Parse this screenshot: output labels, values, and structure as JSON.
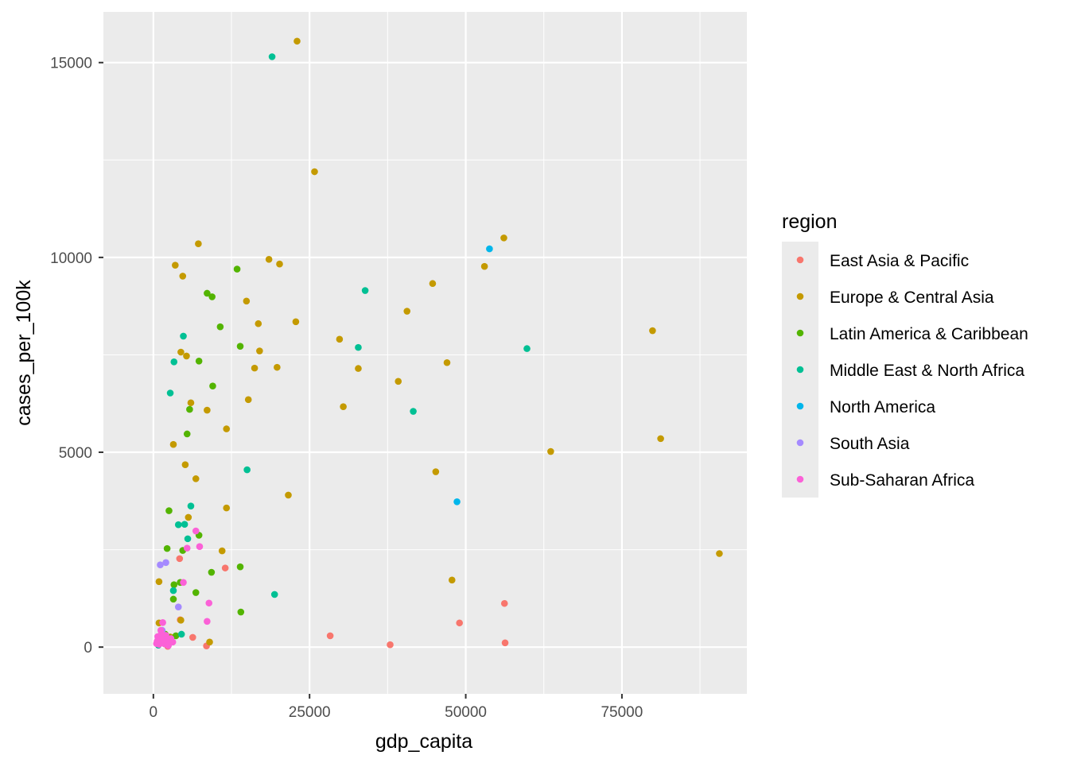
{
  "chart_data": {
    "type": "scatter",
    "title": "",
    "xlabel": "gdp_capita",
    "ylabel": "cases_per_100k",
    "xlim": [
      -8000,
      95000
    ],
    "ylim": [
      -1200,
      16300
    ],
    "xticks": [
      0,
      25000,
      50000,
      75000
    ],
    "yticks": [
      0,
      5000,
      10000,
      15000
    ],
    "xtick_labels": [
      "0",
      "25000",
      "50000",
      "75000"
    ],
    "ytick_labels": [
      "0",
      "5000",
      "10000",
      "15000"
    ],
    "grid": true,
    "background": "#ebebeb",
    "legend": {
      "title": "region",
      "placement": "right"
    },
    "series": [
      {
        "name": "East Asia & Pacific",
        "color": "#F8766D",
        "points": [
          [
            11500,
            2030
          ],
          [
            28300,
            290
          ],
          [
            37900,
            60
          ],
          [
            49000,
            620
          ],
          [
            56200,
            1120
          ],
          [
            56300,
            110
          ],
          [
            8500,
            30
          ],
          [
            2300,
            20
          ],
          [
            1600,
            150
          ],
          [
            4300,
            700
          ],
          [
            4200,
            2270
          ],
          [
            6300,
            250
          ],
          [
            1200,
            130
          ]
        ]
      },
      {
        "name": "Europe & Central Asia",
        "color": "#C49A00",
        "points": [
          [
            23000,
            15550
          ],
          [
            25800,
            12200
          ],
          [
            7200,
            10350
          ],
          [
            56100,
            10500
          ],
          [
            53000,
            9770
          ],
          [
            3500,
            9800
          ],
          [
            18500,
            9950
          ],
          [
            20200,
            9830
          ],
          [
            4700,
            9520
          ],
          [
            44700,
            9330
          ],
          [
            14900,
            8880
          ],
          [
            40600,
            8620
          ],
          [
            16800,
            8300
          ],
          [
            22800,
            8350
          ],
          [
            79900,
            8120
          ],
          [
            29800,
            7900
          ],
          [
            17000,
            7600
          ],
          [
            4400,
            7570
          ],
          [
            5300,
            7470
          ],
          [
            16200,
            7160
          ],
          [
            19800,
            7180
          ],
          [
            32800,
            7150
          ],
          [
            47000,
            7300
          ],
          [
            39200,
            6820
          ],
          [
            6000,
            6270
          ],
          [
            15200,
            6350
          ],
          [
            30400,
            6170
          ],
          [
            8600,
            6080
          ],
          [
            11700,
            5600
          ],
          [
            81200,
            5350
          ],
          [
            3200,
            5200
          ],
          [
            63600,
            5020
          ],
          [
            5100,
            4680
          ],
          [
            45200,
            4500
          ],
          [
            6800,
            4320
          ],
          [
            21600,
            3900
          ],
          [
            11700,
            3570
          ],
          [
            5600,
            3330
          ],
          [
            90600,
            2400
          ],
          [
            11000,
            2470
          ],
          [
            47800,
            1720
          ],
          [
            900,
            1680
          ],
          [
            2700,
            260
          ],
          [
            4400,
            690
          ],
          [
            9000,
            130
          ],
          [
            900,
            620
          ]
        ]
      },
      {
        "name": "Latin America & Caribbean",
        "color": "#53B400",
        "points": [
          [
            13400,
            9700
          ],
          [
            8600,
            9080
          ],
          [
            9400,
            8990
          ],
          [
            10700,
            8220
          ],
          [
            13900,
            7720
          ],
          [
            7300,
            7340
          ],
          [
            9500,
            6700
          ],
          [
            5800,
            6100
          ],
          [
            5400,
            5470
          ],
          [
            2500,
            3500
          ],
          [
            7300,
            2870
          ],
          [
            2200,
            2530
          ],
          [
            4700,
            2480
          ],
          [
            13900,
            2060
          ],
          [
            9300,
            1920
          ],
          [
            4300,
            1660
          ],
          [
            3300,
            1600
          ],
          [
            6800,
            1400
          ],
          [
            3200,
            1230
          ],
          [
            14000,
            900
          ],
          [
            1900,
            330
          ],
          [
            3600,
            290
          ],
          [
            2400,
            250
          ]
        ]
      },
      {
        "name": "Middle East & North Africa",
        "color": "#00C094",
        "points": [
          [
            19000,
            15150
          ],
          [
            33900,
            9150
          ],
          [
            4800,
            7980
          ],
          [
            32800,
            7690
          ],
          [
            59800,
            7660
          ],
          [
            3300,
            7320
          ],
          [
            2700,
            6520
          ],
          [
            41600,
            6050
          ],
          [
            15000,
            4550
          ],
          [
            6000,
            3620
          ],
          [
            4000,
            3140
          ],
          [
            5000,
            3150
          ],
          [
            5500,
            2780
          ],
          [
            3200,
            1450
          ],
          [
            19400,
            1350
          ],
          [
            4500,
            330
          ],
          [
            800,
            50
          ],
          [
            2100,
            80
          ]
        ]
      },
      {
        "name": "North America",
        "color": "#00B6EB",
        "points": [
          [
            53800,
            10220
          ],
          [
            48600,
            3730
          ]
        ]
      },
      {
        "name": "South Asia",
        "color": "#A58AFF",
        "points": [
          [
            1100,
            2110
          ],
          [
            2000,
            2170
          ],
          [
            4000,
            1030
          ],
          [
            1400,
            430
          ],
          [
            1600,
            230
          ],
          [
            1000,
            110
          ],
          [
            2200,
            190
          ]
        ]
      },
      {
        "name": "Sub-Saharan Africa",
        "color": "#FB61D7",
        "points": [
          [
            6800,
            2980
          ],
          [
            7400,
            2580
          ],
          [
            5400,
            2540
          ],
          [
            4800,
            1660
          ],
          [
            8900,
            1130
          ],
          [
            8600,
            660
          ],
          [
            1500,
            630
          ],
          [
            1200,
            430
          ],
          [
            700,
            270
          ],
          [
            1500,
            200
          ],
          [
            2000,
            300
          ],
          [
            2800,
            220
          ],
          [
            3100,
            130
          ],
          [
            900,
            70
          ],
          [
            2200,
            140
          ],
          [
            1300,
            340
          ],
          [
            500,
            90
          ],
          [
            1800,
            80
          ],
          [
            2400,
            40
          ],
          [
            600,
            150
          ]
        ]
      }
    ]
  }
}
